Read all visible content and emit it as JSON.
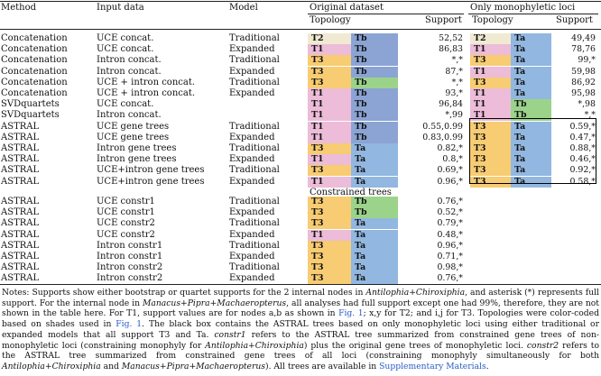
{
  "headers": {
    "method": "Method",
    "input_data": "Input data",
    "model": "Model",
    "original_dataset": "Original dataset",
    "only_monophyletic": "Only monophyletic loci",
    "topology": "Topology",
    "support": "Support",
    "constrained_trees": "Constrained trees"
  },
  "colors": {
    "T1": "#ecbcd8",
    "T2": "#f0ead2",
    "T3": "#f7cc72",
    "Ta": "#92b7e0",
    "Tb_blue": "#8ba4d4",
    "Tb_green": "#9cd38a"
  },
  "rows": [
    {
      "method": "Concatenation",
      "input": "UCE concat.",
      "model": "Traditional",
      "o_t1": "T2",
      "o_t2": "Tb",
      "o_t2c": "Tb_blue",
      "o_sup": "52,52",
      "m_t1": "T2",
      "m_t2": "Ta",
      "m_sup": "49,49"
    },
    {
      "method": "Concatenation",
      "input": "UCE concat.",
      "model": "Expanded",
      "o_t1": "T1",
      "o_t2": "Tb",
      "o_t2c": "Tb_blue",
      "o_sup": "86,83",
      "m_t1": "T1",
      "m_t2": "Ta",
      "m_sup": "78,76"
    },
    {
      "method": "Concatenation",
      "input": "Intron concat.",
      "model": "Traditional",
      "o_t1": "T3",
      "o_t2": "Tb",
      "o_t2c": "Tb_blue",
      "o_sup": "*,*",
      "m_t1": "T3",
      "m_t2": "Ta",
      "m_sup": "99,*"
    },
    {
      "method": "Concatenation",
      "input": "Intron concat.",
      "model": "Expanded",
      "o_t1": "T3",
      "o_t2": "Tb",
      "o_t2c": "Tb_blue",
      "o_sup": "87,*",
      "m_t1": "T1",
      "m_t2": "Ta",
      "m_sup": "59,98"
    },
    {
      "method": "Concatenation",
      "input": "UCE + intron concat.",
      "model": "Traditional",
      "o_t1": "T3",
      "o_t2": "Tb",
      "o_t2c": "Tb_green",
      "o_sup": "*,*",
      "m_t1": "T3",
      "m_t2": "Ta",
      "m_sup": "86,92"
    },
    {
      "method": "Concatenation",
      "input": "UCE + intron concat.",
      "model": "Expanded",
      "o_t1": "T1",
      "o_t2": "Tb",
      "o_t2c": "Tb_blue",
      "o_sup": "93,*",
      "m_t1": "T1",
      "m_t2": "Ta",
      "m_sup": "95,98"
    },
    {
      "method": "SVDquartets",
      "input": "UCE concat.",
      "model": "",
      "o_t1": "T1",
      "o_t2": "Tb",
      "o_t2c": "Tb_blue",
      "o_sup": "96,84",
      "m_t1": "T1",
      "m_t2": "Tb",
      "m_sup": "*,98"
    },
    {
      "method": "SVDquartets",
      "input": "Intron concat.",
      "model": "",
      "o_t1": "T1",
      "o_t2": "Tb",
      "o_t2c": "Tb_blue",
      "o_sup": "*,99",
      "m_t1": "T1",
      "m_t2": "Tb",
      "m_sup": "*,*"
    },
    {
      "method": "ASTRAL",
      "input": "UCE gene trees",
      "model": "Traditional",
      "o_t1": "T1",
      "o_t2": "Tb",
      "o_t2c": "Tb_blue",
      "o_sup": "0.55,0.99",
      "m_t1": "T3",
      "m_t2": "Ta",
      "m_sup": "0.59,*"
    },
    {
      "method": "ASTRAL",
      "input": "UCE gene trees",
      "model": "Expanded",
      "o_t1": "T1",
      "o_t2": "Tb",
      "o_t2c": "Tb_blue",
      "o_sup": "0.83,0.99",
      "m_t1": "T3",
      "m_t2": "Ta",
      "m_sup": "0.47,*"
    },
    {
      "method": "ASTRAL",
      "input": "Intron gene trees",
      "model": "Traditional",
      "o_t1": "T3",
      "o_t2": "Ta",
      "o_t2c": "Ta",
      "o_sup": "0.82,*",
      "m_t1": "T3",
      "m_t2": "Ta",
      "m_sup": "0.88,*"
    },
    {
      "method": "ASTRAL",
      "input": "Intron gene trees",
      "model": "Expanded",
      "o_t1": "T1",
      "o_t2": "Ta",
      "o_t2c": "Ta",
      "o_sup": "0.8,*",
      "m_t1": "T3",
      "m_t2": "Ta",
      "m_sup": "0.46,*"
    },
    {
      "method": "ASTRAL",
      "input": "UCE+intron gene trees",
      "model": "Traditional",
      "o_t1": "T3",
      "o_t2": "Ta",
      "o_t2c": "Ta",
      "o_sup": "0.69,*",
      "m_t1": "T3",
      "m_t2": "Ta",
      "m_sup": "0.92,*"
    },
    {
      "method": "ASTRAL",
      "input": "UCE+intron gene trees",
      "model": "Expanded",
      "o_t1": "T1",
      "o_t2": "Ta",
      "o_t2c": "Ta",
      "o_sup": "0.96,*",
      "m_t1": "T3",
      "m_t2": "Ta",
      "m_sup": "0.58,*"
    }
  ],
  "constrained_rows": [
    {
      "method": "ASTRAL",
      "input": "UCE constr1",
      "model": "Traditional",
      "o_t1": "T3",
      "o_t2": "Tb",
      "o_t2c": "Tb_green",
      "o_sup": "0.76,*"
    },
    {
      "method": "ASTRAL",
      "input": "UCE constr1",
      "model": "Expanded",
      "o_t1": "T3",
      "o_t2": "Tb",
      "o_t2c": "Tb_green",
      "o_sup": "0.52,*"
    },
    {
      "method": "ASTRAL",
      "input": "UCE constr2",
      "model": "Traditional",
      "o_t1": "T3",
      "o_t2": "Ta",
      "o_t2c": "Ta",
      "o_sup": "0.79,*"
    },
    {
      "method": "ASTRAL",
      "input": "UCE constr2",
      "model": "Expanded",
      "o_t1": "T1",
      "o_t2": "Ta",
      "o_t2c": "Ta",
      "o_sup": "0.48,*"
    },
    {
      "method": "ASTRAL",
      "input": "Intron constr1",
      "model": "Traditional",
      "o_t1": "T3",
      "o_t2": "Ta",
      "o_t2c": "Ta",
      "o_sup": "0.96,*"
    },
    {
      "method": "ASTRAL",
      "input": "Intron constr1",
      "model": "Expanded",
      "o_t1": "T3",
      "o_t2": "Ta",
      "o_t2c": "Ta",
      "o_sup": "0.71,*"
    },
    {
      "method": "ASTRAL",
      "input": "Intron constr2",
      "model": "Traditional",
      "o_t1": "T3",
      "o_t2": "Ta",
      "o_t2c": "Ta",
      "o_sup": "0.98,*"
    },
    {
      "method": "ASTRAL",
      "input": "Intron constr2",
      "model": "Expanded",
      "o_t1": "T3",
      "o_t2": "Ta",
      "o_t2c": "Ta",
      "o_sup": "0.76,*"
    }
  ],
  "notes": {
    "p1": "Notes: Supports show either bootstrap or quartet supports for the 2 internal nodes in ",
    "i1": "Antilophia+Chiroxiphia",
    "p2": ", and asterisk (*) represents full support. For the internal node in ",
    "i2": "Manacus+Pipra+Machaeropterus",
    "p3": ", all analyses had full support except one had 99%, therefore, they are not shown in the table here. For T1, support values are for nodes a,b as shown in ",
    "l1": "Fig. 1",
    "p4": "; x,y for T2; and i,j for T3. Topologies were color-coded based on shades used in ",
    "l2": "Fig. 1",
    "p5": ". The black box contains the ASTRAL trees based on only monophyletic loci using either traditional or expanded models that all support T3 and Ta. ",
    "i3": "constr1",
    "p6": " refers to the ASTRAL tree summarized from constrained gene trees of non-monophyletic loci (constraining monophyly for ",
    "i4": "Antilophia+Chiroxiphia",
    "p7": ") plus the original gene trees of monophyletic loci. ",
    "i5": "constr2",
    "p8": " refers to the ASTRAL tree summarized from constrained gene trees of all loci (constraining monophyly simultaneously for both ",
    "i6": "Antilophia+Chiroxiphia",
    "p9": " and ",
    "i7": "Manacus+Pipra+Machaeropterus",
    "p10": "). All trees are available in ",
    "l3": "Supplementary Materials",
    "p11": "."
  }
}
